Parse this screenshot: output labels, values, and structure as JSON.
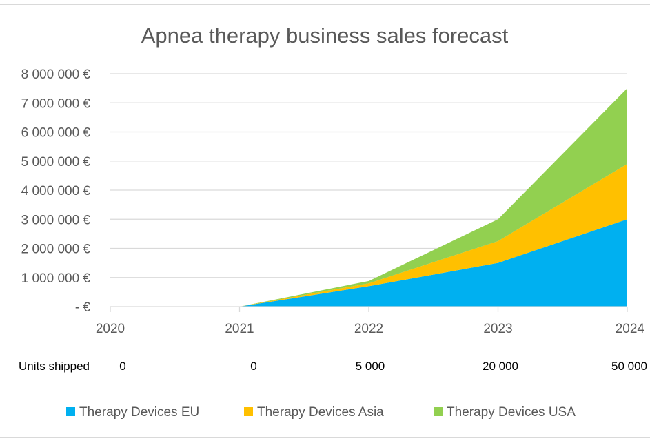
{
  "chart_data": {
    "type": "area",
    "stacked": true,
    "title": "Apnea therapy business sales forecast",
    "xlabel": "",
    "ylabel": "",
    "x": [
      "2020",
      "2021",
      "2022",
      "2023",
      "2024"
    ],
    "ylim": [
      0,
      8000000
    ],
    "y_ticks": [
      "- €",
      "1 000 000 €",
      "2 000 000 €",
      "3 000 000 €",
      "4 000 000 €",
      "5 000 000 €",
      "6 000 000 €",
      "7 000 000 €",
      "8 000 000 €"
    ],
    "grid": true,
    "legend_position": "bottom",
    "series": [
      {
        "name": "Therapy Devices EU",
        "color": "#00b0f0",
        "values": [
          0,
          0,
          700000,
          1500000,
          3000000
        ]
      },
      {
        "name": "Therapy Devices Asia",
        "color": "#ffc000",
        "values": [
          0,
          0,
          100000,
          750000,
          1900000
        ]
      },
      {
        "name": "Therapy Devices USA",
        "color": "#92d050",
        "values": [
          0,
          0,
          80000,
          750000,
          2600000
        ]
      }
    ]
  },
  "units_row": {
    "label": "Units shipped",
    "values": [
      "0",
      "0",
      "5 000",
      "20 000",
      "50 000"
    ]
  }
}
